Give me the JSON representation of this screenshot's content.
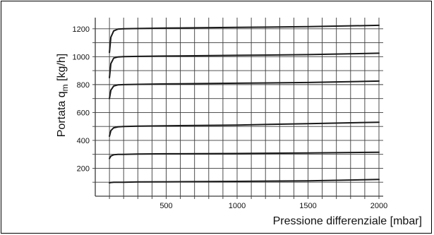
{
  "chart_data": {
    "type": "line",
    "title": "",
    "xlabel": "Pressione differenziale [mbar]",
    "ylabel_main": "Portata q",
    "ylabel_sub": "m",
    "ylabel_unit": " [kg/h]",
    "xlim": [
      0,
      2000
    ],
    "ylim": [
      0,
      1280
    ],
    "x_ticks": [
      500,
      1000,
      1500,
      2000
    ],
    "y_ticks": [
      200,
      400,
      600,
      800,
      1000,
      1200
    ],
    "grid": true,
    "legend": "none",
    "series": [
      {
        "x": [
          100,
          110,
          130,
          160,
          200,
          300,
          500,
          1000,
          1500,
          2000
        ],
        "y": [
          95,
          98,
          100,
          100,
          100,
          102,
          103,
          106,
          110,
          120
        ]
      },
      {
        "x": [
          100,
          110,
          130,
          160,
          200,
          300,
          500,
          1000,
          1500,
          2000
        ],
        "y": [
          270,
          288,
          297,
          300,
          300,
          302,
          304,
          306,
          310,
          315
        ]
      },
      {
        "x": [
          100,
          110,
          130,
          160,
          200,
          300,
          500,
          1000,
          1500,
          2000
        ],
        "y": [
          430,
          470,
          490,
          497,
          500,
          502,
          505,
          510,
          520,
          530
        ]
      },
      {
        "x": [
          100,
          110,
          130,
          160,
          200,
          300,
          500,
          1000,
          1500,
          2000
        ],
        "y": [
          700,
          760,
          790,
          798,
          800,
          802,
          805,
          810,
          815,
          825
        ]
      },
      {
        "x": [
          100,
          110,
          130,
          160,
          200,
          300,
          500,
          1000,
          1500,
          2000
        ],
        "y": [
          850,
          950,
          990,
          998,
          1000,
          1002,
          1005,
          1010,
          1015,
          1025
        ]
      },
      {
        "x": [
          100,
          110,
          130,
          160,
          200,
          300,
          500,
          1000,
          1500,
          2000
        ],
        "y": [
          1030,
          1140,
          1185,
          1198,
          1200,
          1202,
          1205,
          1210,
          1215,
          1225
        ]
      }
    ]
  }
}
